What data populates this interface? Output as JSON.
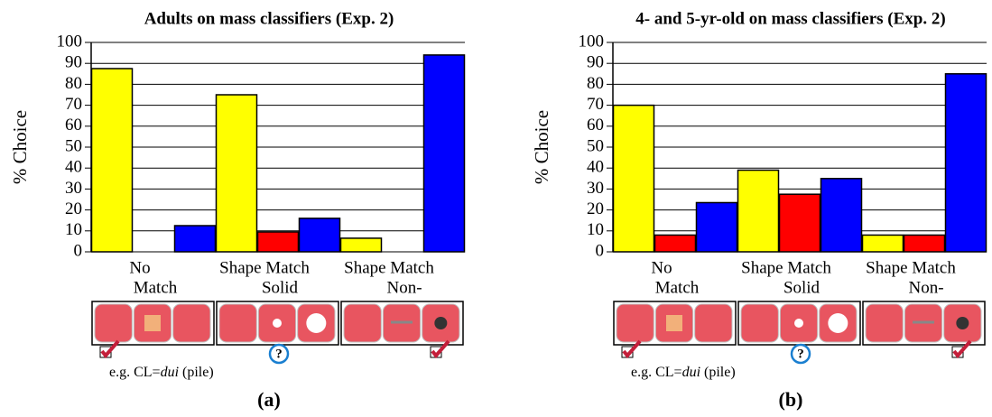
{
  "chart_data": [
    {
      "type": "bar",
      "title": "Adults on mass classifiers (Exp. 2)",
      "ylabel": "% Choice",
      "categories": [
        [
          "No",
          "Match"
        ],
        [
          "Shape Match",
          "Solid"
        ],
        [
          "Shape Match",
          "Non-"
        ]
      ],
      "series": [
        {
          "color": "#ffff00",
          "values": [
            87.5,
            75,
            6.5
          ]
        },
        {
          "color": "#ff0000",
          "values": [
            0,
            9.5,
            0
          ]
        },
        {
          "color": "#0000ff",
          "values": [
            12.5,
            16,
            94
          ]
        }
      ],
      "ylim": [
        0,
        100
      ],
      "yticks": [
        0,
        10,
        20,
        30,
        40,
        50,
        60,
        70,
        80,
        90,
        100
      ],
      "grid": true,
      "annotation": [
        "e.g. CL=",
        "dui",
        " (pile)"
      ],
      "panel_label": "(a)"
    },
    {
      "type": "bar",
      "title": "4- and 5-yr-old on mass classifiers (Exp. 2)",
      "ylabel": "% Choice",
      "categories": [
        [
          "No",
          "Match"
        ],
        [
          "Shape Match",
          "Solid"
        ],
        [
          "Shape Match",
          "Non-"
        ]
      ],
      "series": [
        {
          "color": "#ffff00",
          "values": [
            70,
            39,
            8
          ]
        },
        {
          "color": "#ff0000",
          "values": [
            8,
            27.5,
            8
          ]
        },
        {
          "color": "#0000ff",
          "values": [
            23.5,
            35,
            85
          ]
        }
      ],
      "ylim": [
        0,
        100
      ],
      "yticks": [
        0,
        10,
        20,
        30,
        40,
        50,
        60,
        70,
        80,
        90,
        100
      ],
      "grid": true,
      "annotation": [
        "e.g. CL=",
        "dui",
        " (pile)"
      ],
      "panel_label": "(b)"
    }
  ]
}
